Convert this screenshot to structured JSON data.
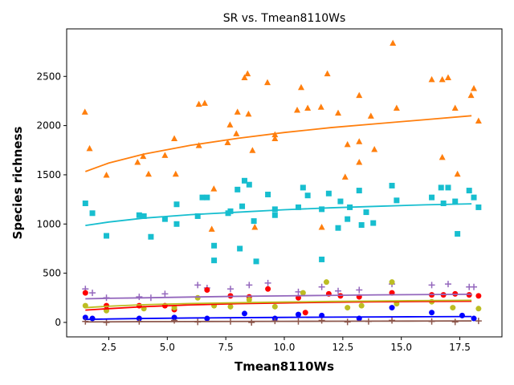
{
  "chart_data": {
    "type": "scatter",
    "title": "SR vs. Tmean8110Ws",
    "x_label": "Tmean8110Ws",
    "y_label": "Species richness",
    "xlim": [
      0.7,
      19.3
    ],
    "ylim": [
      -147,
      2983
    ],
    "xticks": [
      {
        "value": 2.5,
        "label": "2.5"
      },
      {
        "value": 5,
        "label": "5.0"
      },
      {
        "value": 7.5,
        "label": "7.5"
      },
      {
        "value": 10,
        "label": "10.0"
      },
      {
        "value": 12.5,
        "label": "12.5"
      },
      {
        "value": 15,
        "label": "15.0"
      },
      {
        "value": 17.5,
        "label": "17.5"
      }
    ],
    "yticks": [
      0,
      500,
      1000,
      1500,
      2000,
      2500
    ],
    "series": [
      {
        "color": "#ff7f0e",
        "marker": "triangle",
        "x": [
          1.48,
          1.68,
          2.4,
          3.73,
          3.97,
          4.2,
          4.9,
          5.3,
          5.36,
          6.35,
          6.35,
          6.6,
          6.9,
          6.99,
          7.58,
          7.68,
          7.95,
          8.0,
          8.3,
          8.43,
          8.47,
          8.64,
          8.74,
          9.28,
          9.6,
          9.6,
          10.55,
          10.72,
          11.0,
          11.57,
          11.6,
          11.84,
          12.3,
          12.6,
          12.7,
          13.2,
          13.2,
          13.2,
          13.7,
          13.85,
          14.64,
          14.8,
          16.3,
          16.75,
          16.75,
          17.0,
          17.3,
          17.4,
          17.98,
          18.1,
          18.3
        ],
        "values": [
          2140,
          1770,
          1500,
          1630,
          1690,
          1510,
          1700,
          1870,
          1510,
          2220,
          1800,
          2230,
          950,
          1360,
          1830,
          2010,
          1920,
          2140,
          2490,
          2530,
          2120,
          1750,
          970,
          2440,
          1910,
          1870,
          2160,
          2390,
          2180,
          2190,
          970,
          2530,
          2130,
          1480,
          1810,
          2310,
          1840,
          1630,
          2100,
          1760,
          2840,
          2180,
          2470,
          1680,
          2470,
          2490,
          2180,
          1510,
          2310,
          2380,
          2050
        ]
      },
      {
        "color": "#17becf",
        "marker": "square",
        "x": [
          1.5,
          1.8,
          2.4,
          3.8,
          4.0,
          4.3,
          4.9,
          5.4,
          5.4,
          6.3,
          6.5,
          6.7,
          7.0,
          7.0,
          7.7,
          7.6,
          8.0,
          8.1,
          8.2,
          8.3,
          8.5,
          8.7,
          8.8,
          9.3,
          9.6,
          9.6,
          10.6,
          10.8,
          11.0,
          11.6,
          11.6,
          11.9,
          12.3,
          12.4,
          12.7,
          12.8,
          13.2,
          13.3,
          13.5,
          13.8,
          14.6,
          14.8,
          16.3,
          16.7,
          16.8,
          17.0,
          17.3,
          17.4,
          17.9,
          18.1,
          18.3
        ],
        "values": [
          1210,
          1110,
          880,
          1090,
          1080,
          870,
          1050,
          1000,
          1200,
          1080,
          1270,
          1270,
          630,
          780,
          1130,
          1110,
          1350,
          750,
          1180,
          1440,
          1400,
          1030,
          620,
          1300,
          1090,
          1150,
          1170,
          1370,
          1290,
          640,
          1150,
          1310,
          960,
          1230,
          1050,
          1170,
          1340,
          990,
          1120,
          1010,
          1390,
          1240,
          1270,
          1370,
          1210,
          1370,
          1230,
          900,
          1340,
          1270,
          1170
        ]
      },
      {
        "color": "#9467bd",
        "marker": "plus",
        "x": [
          1.5,
          1.8,
          2.4,
          3.8,
          4.3,
          4.9,
          6.3,
          6.7,
          7.7,
          8.5,
          9.3,
          10.6,
          11.6,
          12.3,
          13.2,
          14.6,
          16.3,
          17.0,
          17.9,
          18.1
        ],
        "values": [
          340,
          300,
          250,
          260,
          250,
          290,
          380,
          350,
          340,
          380,
          400,
          310,
          360,
          320,
          330,
          390,
          380,
          390,
          360,
          360
        ]
      },
      {
        "color": "#ff0000",
        "marker": "circle",
        "x": [
          1.5,
          2.4,
          3.8,
          4.9,
          5.3,
          6.7,
          7.7,
          8.5,
          9.3,
          10.6,
          10.9,
          11.9,
          12.4,
          13.2,
          14.6,
          16.3,
          16.8,
          17.3,
          17.9,
          18.3
        ],
        "values": [
          300,
          170,
          170,
          170,
          130,
          330,
          270,
          260,
          340,
          250,
          100,
          290,
          270,
          260,
          300,
          280,
          280,
          290,
          280,
          270
        ]
      },
      {
        "color": "#bcbd22",
        "marker": "circle",
        "x": [
          1.5,
          2.4,
          4.0,
          5.3,
          6.3,
          7.0,
          7.7,
          8.5,
          9.6,
          10.8,
          11.8,
          12.7,
          13.3,
          14.6,
          14.8,
          16.3,
          17.2,
          18.3
        ],
        "values": [
          170,
          120,
          140,
          150,
          250,
          170,
          160,
          230,
          160,
          300,
          410,
          150,
          170,
          410,
          190,
          210,
          150,
          140
        ]
      },
      {
        "color": "#0000ff",
        "marker": "circle",
        "x": [
          1.5,
          1.8,
          3.8,
          5.3,
          6.7,
          8.3,
          9.6,
          10.6,
          11.6,
          13.2,
          14.6,
          16.3,
          17.6,
          18.1
        ],
        "values": [
          50,
          40,
          40,
          50,
          40,
          90,
          40,
          80,
          70,
          40,
          150,
          100,
          70,
          40
        ]
      },
      {
        "color": "#8c564b",
        "marker": "plus",
        "x": [
          1.5,
          2.4,
          3.8,
          5.3,
          6.3,
          7.7,
          8.6,
          9.6,
          10.6,
          11.6,
          12.7,
          13.6,
          14.6,
          16.3,
          17.3,
          18.3
        ],
        "values": [
          10,
          0,
          10,
          20,
          5,
          10,
          0,
          15,
          10,
          20,
          5,
          10,
          20,
          10,
          5,
          15
        ]
      }
    ],
    "fits": [
      {
        "color": "#ff7f0e",
        "x": [
          1.5,
          2.5,
          4,
          6,
          8,
          10,
          12,
          14,
          16,
          18
        ],
        "values": [
          1533,
          1620,
          1710,
          1800,
          1870,
          1930,
          1980,
          2020,
          2060,
          2100
        ]
      },
      {
        "color": "#17becf",
        "x": [
          1.5,
          2.5,
          4,
          6,
          8,
          10,
          12,
          14,
          16,
          18
        ],
        "values": [
          985,
          1020,
          1060,
          1095,
          1120,
          1145,
          1165,
          1180,
          1195,
          1205
        ]
      },
      {
        "color": "#9467bd",
        "x": [
          1.5,
          2.5,
          4,
          6,
          8,
          10,
          12,
          14,
          16,
          18
        ],
        "values": [
          240,
          245,
          250,
          258,
          265,
          270,
          275,
          280,
          283,
          286
        ]
      },
      {
        "color": "#ff0000",
        "x": [
          1.5,
          2.5,
          4,
          6,
          8,
          10,
          12,
          14,
          16,
          18
        ],
        "values": [
          125,
          140,
          160,
          178,
          190,
          198,
          205,
          210,
          213,
          215
        ]
      },
      {
        "color": "#bcbd22",
        "x": [
          1.5,
          2.5,
          4,
          6,
          8,
          10,
          12,
          14,
          16,
          18
        ],
        "values": [
          150,
          165,
          180,
          192,
          200,
          207,
          213,
          218,
          222,
          225
        ]
      },
      {
        "color": "#0000ff",
        "x": [
          1.5,
          2.5,
          4,
          6,
          8,
          10,
          12,
          14,
          16,
          18
        ],
        "values": [
          30,
          35,
          40,
          45,
          48,
          51,
          54,
          56,
          58,
          60
        ]
      },
      {
        "color": "#8c564b",
        "x": [
          1.5,
          2.5,
          4,
          6,
          8,
          10,
          12,
          14,
          16,
          18
        ],
        "values": [
          5,
          6,
          8,
          9,
          10,
          11,
          12,
          13,
          14,
          15
        ]
      }
    ]
  }
}
